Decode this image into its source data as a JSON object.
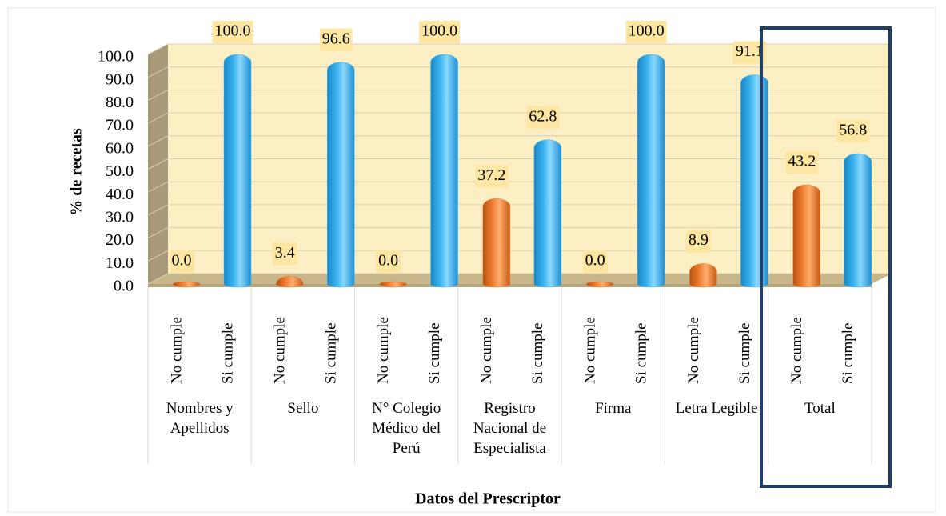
{
  "chart_data": {
    "type": "bar",
    "y_label": "% de recetas",
    "x_label": "Datos del Prescriptor",
    "categories": [
      "Nombres y Apellidos",
      "Sello",
      "N° Colegio Médico del Perú",
      "Registro Nacional de Especialista",
      "Firma",
      "Letra Legible",
      "Total"
    ],
    "series": [
      {
        "name": "No cumple",
        "color": "#ed7d31",
        "values": [
          0,
          3.4,
          0,
          37.2,
          0,
          8.9,
          43.2
        ],
        "value_labels": [
          "0.0",
          "3.4",
          "0.0",
          "37.2",
          "0.0",
          "8.9",
          "43.2"
        ]
      },
      {
        "name": "Si cumple",
        "color": "#3ab4ee",
        "values": [
          100,
          96.6,
          100,
          62.8,
          100,
          91.1,
          56.8
        ],
        "value_labels": [
          "100.0",
          "96.6",
          "100.0",
          "62.8",
          "100.0",
          "91.1",
          "56.8"
        ]
      }
    ],
    "ylim": [
      0,
      100
    ],
    "yticks": [
      {
        "value": 0,
        "label": "0.0"
      },
      {
        "value": 10,
        "label": "10.0"
      },
      {
        "value": 20,
        "label": "20.0"
      },
      {
        "value": 30,
        "label": "30.0"
      },
      {
        "value": 40,
        "label": "40.0"
      },
      {
        "value": 50,
        "label": "50.0"
      },
      {
        "value": 60,
        "label": "60.0"
      },
      {
        "value": 70,
        "label": "70.0"
      },
      {
        "value": 80,
        "label": "80.0"
      },
      {
        "value": 90,
        "label": "90.0"
      },
      {
        "value": 100,
        "label": "100.0"
      }
    ],
    "grid": true
  }
}
